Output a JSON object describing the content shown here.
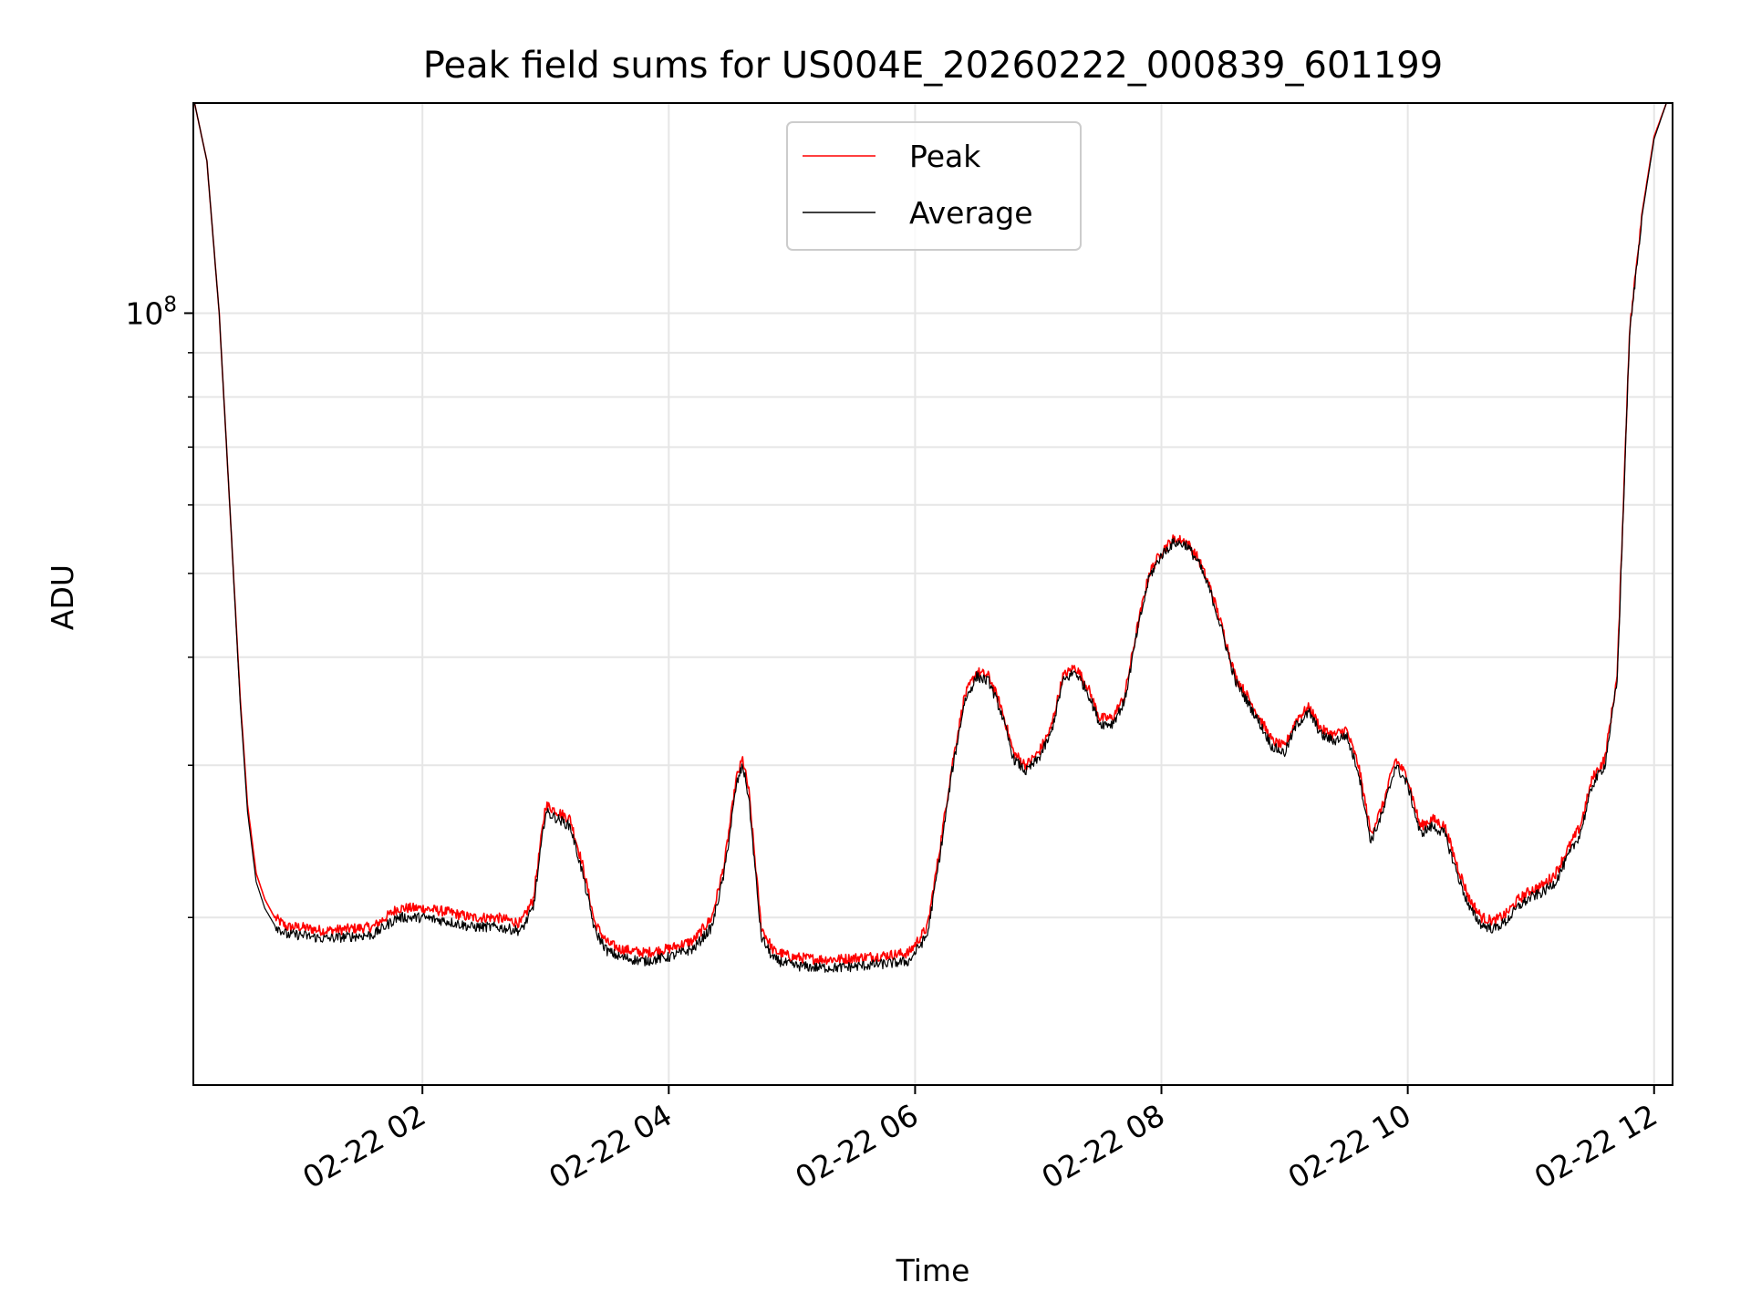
{
  "chart_data": {
    "type": "line",
    "title": "Peak field sums for US004E_20260222_000839_601199",
    "xlabel": "Time",
    "ylabel": "ADU",
    "yscale": "log",
    "ylim": [
      12800000,
      175000000
    ],
    "xlim": [
      0.14,
      12.15
    ],
    "x_unit": "hours after 02-22 00:00",
    "grid": true,
    "legend_position": "upper center",
    "x_ticks": [
      {
        "value": 2,
        "label": "02-22 02"
      },
      {
        "value": 4,
        "label": "02-22 04"
      },
      {
        "value": 6,
        "label": "02-22 06"
      },
      {
        "value": 8,
        "label": "02-22 08"
      },
      {
        "value": 10,
        "label": "02-22 10"
      },
      {
        "value": 12,
        "label": "02-22 12"
      }
    ],
    "y_ticks": [
      {
        "value": 100000000,
        "base": "10",
        "exp": "8"
      }
    ],
    "series": [
      {
        "name": "Peak",
        "color": "#ff0000",
        "x": [
          0.15,
          0.25,
          0.35,
          0.45,
          0.52,
          0.58,
          0.65,
          0.72,
          0.8,
          0.9,
          1.0,
          1.2,
          1.4,
          1.6,
          1.8,
          2.0,
          2.2,
          2.4,
          2.6,
          2.8,
          2.9,
          3.0,
          3.1,
          3.2,
          3.3,
          3.4,
          3.5,
          3.6,
          3.8,
          4.0,
          4.2,
          4.35,
          4.45,
          4.55,
          4.6,
          4.65,
          4.75,
          4.85,
          5.0,
          5.2,
          5.4,
          5.6,
          5.8,
          5.95,
          6.1,
          6.2,
          6.3,
          6.4,
          6.5,
          6.6,
          6.7,
          6.8,
          6.9,
          7.0,
          7.1,
          7.2,
          7.3,
          7.4,
          7.5,
          7.6,
          7.7,
          7.8,
          7.9,
          8.0,
          8.1,
          8.2,
          8.3,
          8.4,
          8.5,
          8.6,
          8.7,
          8.8,
          8.9,
          9.0,
          9.1,
          9.2,
          9.3,
          9.4,
          9.5,
          9.6,
          9.7,
          9.8,
          9.9,
          10.0,
          10.1,
          10.2,
          10.3,
          10.4,
          10.5,
          10.6,
          10.7,
          10.8,
          10.9,
          11.0,
          11.1,
          11.2,
          11.3,
          11.4,
          11.5,
          11.6,
          11.7,
          11.75,
          11.8,
          11.9,
          12.0,
          12.1
        ],
        "values": [
          175000000,
          150000000,
          100000000,
          55000000,
          36000000,
          27000000,
          22500000,
          21000000,
          20000000,
          19500000,
          19500000,
          19300000,
          19400000,
          19500000,
          20500000,
          20500000,
          20300000,
          20000000,
          20000000,
          19700000,
          21000000,
          27000000,
          26500000,
          26000000,
          23000000,
          19700000,
          18700000,
          18400000,
          18200000,
          18400000,
          18800000,
          20000000,
          23000000,
          29000000,
          30500000,
          28000000,
          19500000,
          18300000,
          18000000,
          17900000,
          17900000,
          18000000,
          18100000,
          18200000,
          19500000,
          24000000,
          30000000,
          36000000,
          38500000,
          38000000,
          35000000,
          31000000,
          30000000,
          31000000,
          33000000,
          38000000,
          39000000,
          37000000,
          34000000,
          34000000,
          36000000,
          43000000,
          50000000,
          53000000,
          54800000,
          54500000,
          52000000,
          48000000,
          43000000,
          38000000,
          36000000,
          34000000,
          32000000,
          31500000,
          34000000,
          35000000,
          33000000,
          32500000,
          33000000,
          30000000,
          25000000,
          27000000,
          30500000,
          29000000,
          25500000,
          26000000,
          25500000,
          23000000,
          21000000,
          20000000,
          19800000,
          20200000,
          21000000,
          21500000,
          21800000,
          22500000,
          24000000,
          25500000,
          29000000,
          30500000,
          38000000,
          60000000,
          95000000,
          130000000,
          160000000,
          175000000
        ]
      },
      {
        "name": "Average",
        "color": "#000000",
        "x": [
          0.15,
          0.25,
          0.35,
          0.45,
          0.52,
          0.58,
          0.65,
          0.72,
          0.8,
          0.9,
          1.0,
          1.2,
          1.4,
          1.6,
          1.8,
          2.0,
          2.2,
          2.4,
          2.6,
          2.8,
          2.9,
          3.0,
          3.1,
          3.2,
          3.3,
          3.4,
          3.5,
          3.6,
          3.8,
          4.0,
          4.2,
          4.35,
          4.45,
          4.55,
          4.6,
          4.65,
          4.75,
          4.85,
          5.0,
          5.2,
          5.4,
          5.6,
          5.8,
          5.95,
          6.1,
          6.2,
          6.3,
          6.4,
          6.5,
          6.6,
          6.7,
          6.8,
          6.9,
          7.0,
          7.1,
          7.2,
          7.3,
          7.4,
          7.5,
          7.6,
          7.7,
          7.8,
          7.9,
          8.0,
          8.1,
          8.2,
          8.3,
          8.4,
          8.5,
          8.6,
          8.7,
          8.8,
          8.9,
          9.0,
          9.1,
          9.2,
          9.3,
          9.4,
          9.5,
          9.6,
          9.7,
          9.8,
          9.9,
          10.0,
          10.1,
          10.2,
          10.3,
          10.4,
          10.5,
          10.6,
          10.7,
          10.8,
          10.9,
          11.0,
          11.1,
          11.2,
          11.3,
          11.4,
          11.5,
          11.6,
          11.7,
          11.75,
          11.8,
          11.9,
          12.0,
          12.1
        ],
        "values": [
          175000000,
          150000000,
          100000000,
          55000000,
          35500000,
          26500000,
          22000000,
          20500000,
          19600000,
          19100000,
          19100000,
          18900000,
          19000000,
          19100000,
          20000000,
          20000000,
          19800000,
          19500000,
          19500000,
          19300000,
          20500000,
          26500000,
          26000000,
          25500000,
          22500000,
          19300000,
          18300000,
          18000000,
          17800000,
          18000000,
          18400000,
          19500000,
          22500000,
          28500000,
          30000000,
          27500000,
          19000000,
          17900000,
          17600000,
          17500000,
          17500000,
          17600000,
          17700000,
          17800000,
          19100000,
          23500000,
          29500000,
          35500000,
          38000000,
          37500000,
          34500000,
          30500000,
          29500000,
          30500000,
          32500000,
          37500000,
          38500000,
          36500000,
          33500000,
          33500000,
          35500000,
          42500000,
          49500000,
          52500000,
          54300000,
          54000000,
          51500000,
          47500000,
          42500000,
          37500000,
          35500000,
          33500000,
          31500000,
          31000000,
          33500000,
          34500000,
          32500000,
          32000000,
          32500000,
          29500000,
          24500000,
          26500000,
          30000000,
          28500000,
          25000000,
          25500000,
          25000000,
          22500000,
          20500000,
          19600000,
          19400000,
          19800000,
          20600000,
          21100000,
          21400000,
          22000000,
          23500000,
          25000000,
          28500000,
          30000000,
          37500000,
          59000000,
          94000000,
          129000000,
          159000000,
          175000000
        ]
      }
    ]
  }
}
